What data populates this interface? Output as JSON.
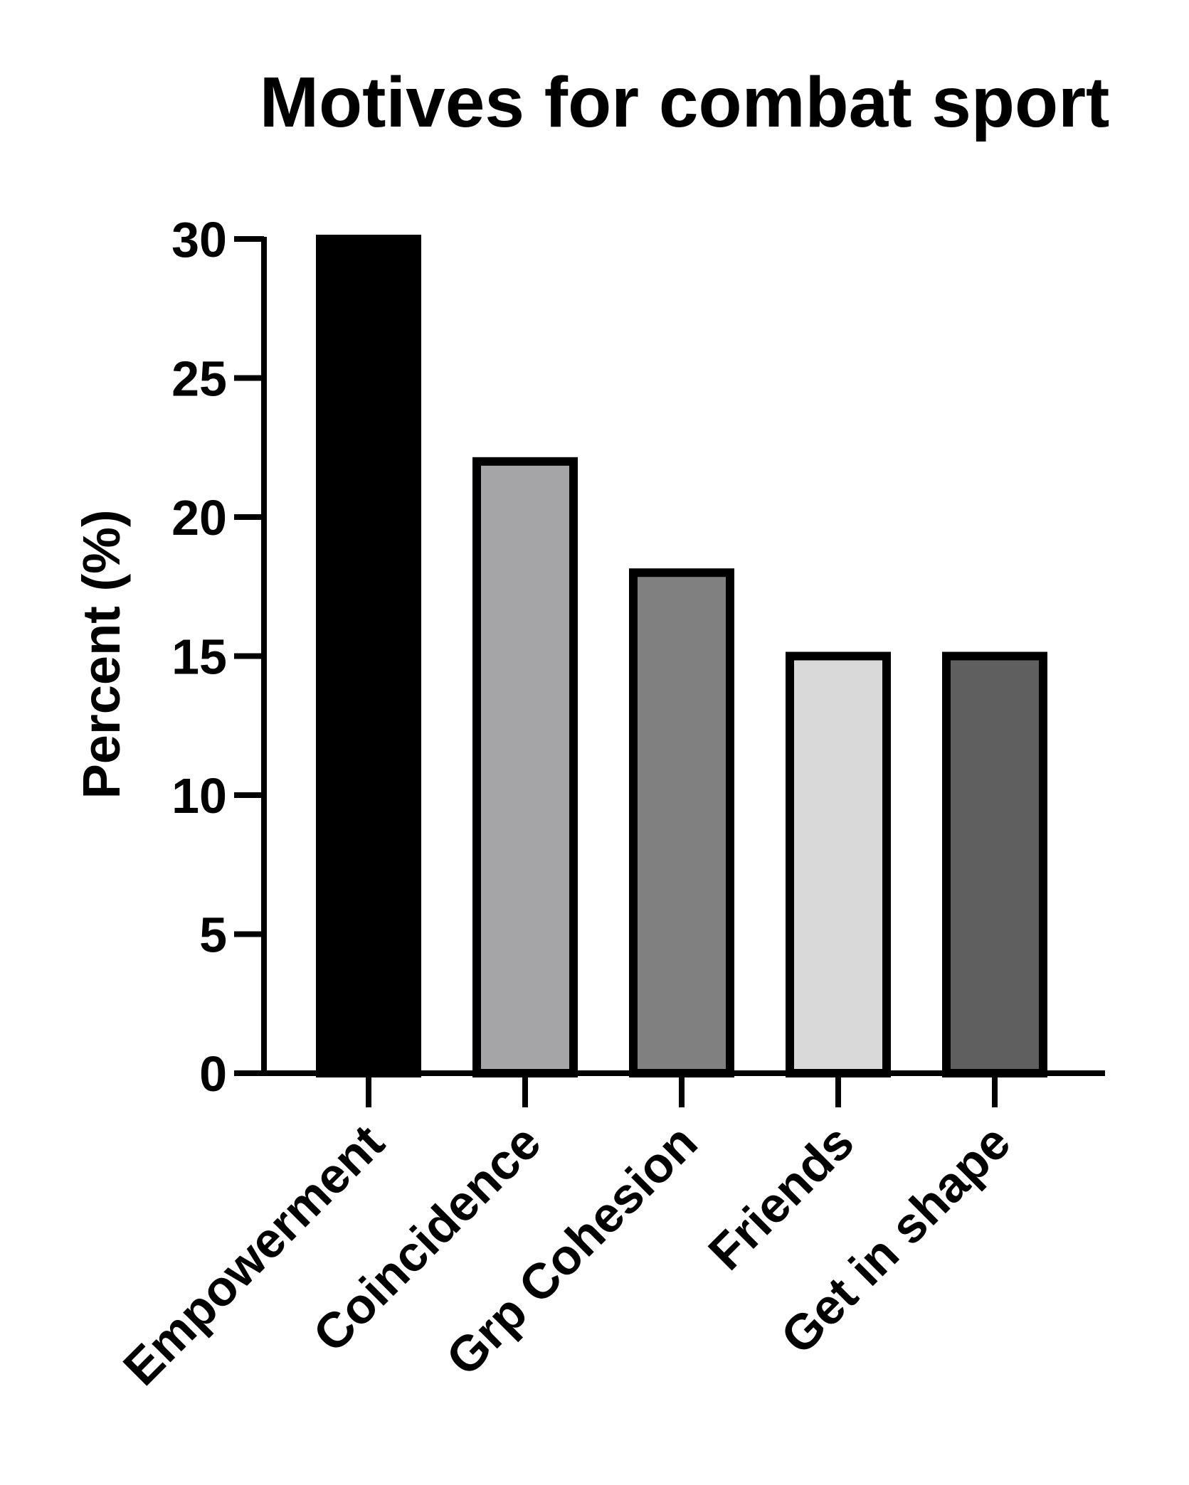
{
  "chart_data": {
    "type": "bar",
    "title": "Motives for combat sport",
    "ylabel": "Percent (%)",
    "xlabel": "",
    "categories": [
      "Empowerment",
      "Coincidence",
      "Grp Cohesion",
      "Friends",
      "Get in shape"
    ],
    "values": [
      30,
      22,
      18,
      15,
      15
    ],
    "colors": [
      "#000000",
      "#a5a5a8",
      "#808080",
      "#d9d9d9",
      "#5f5f5f"
    ],
    "ylim": [
      0,
      30
    ],
    "yticks": [
      0,
      5,
      10,
      15,
      20,
      25,
      30
    ],
    "grid": false,
    "legend": "none"
  }
}
